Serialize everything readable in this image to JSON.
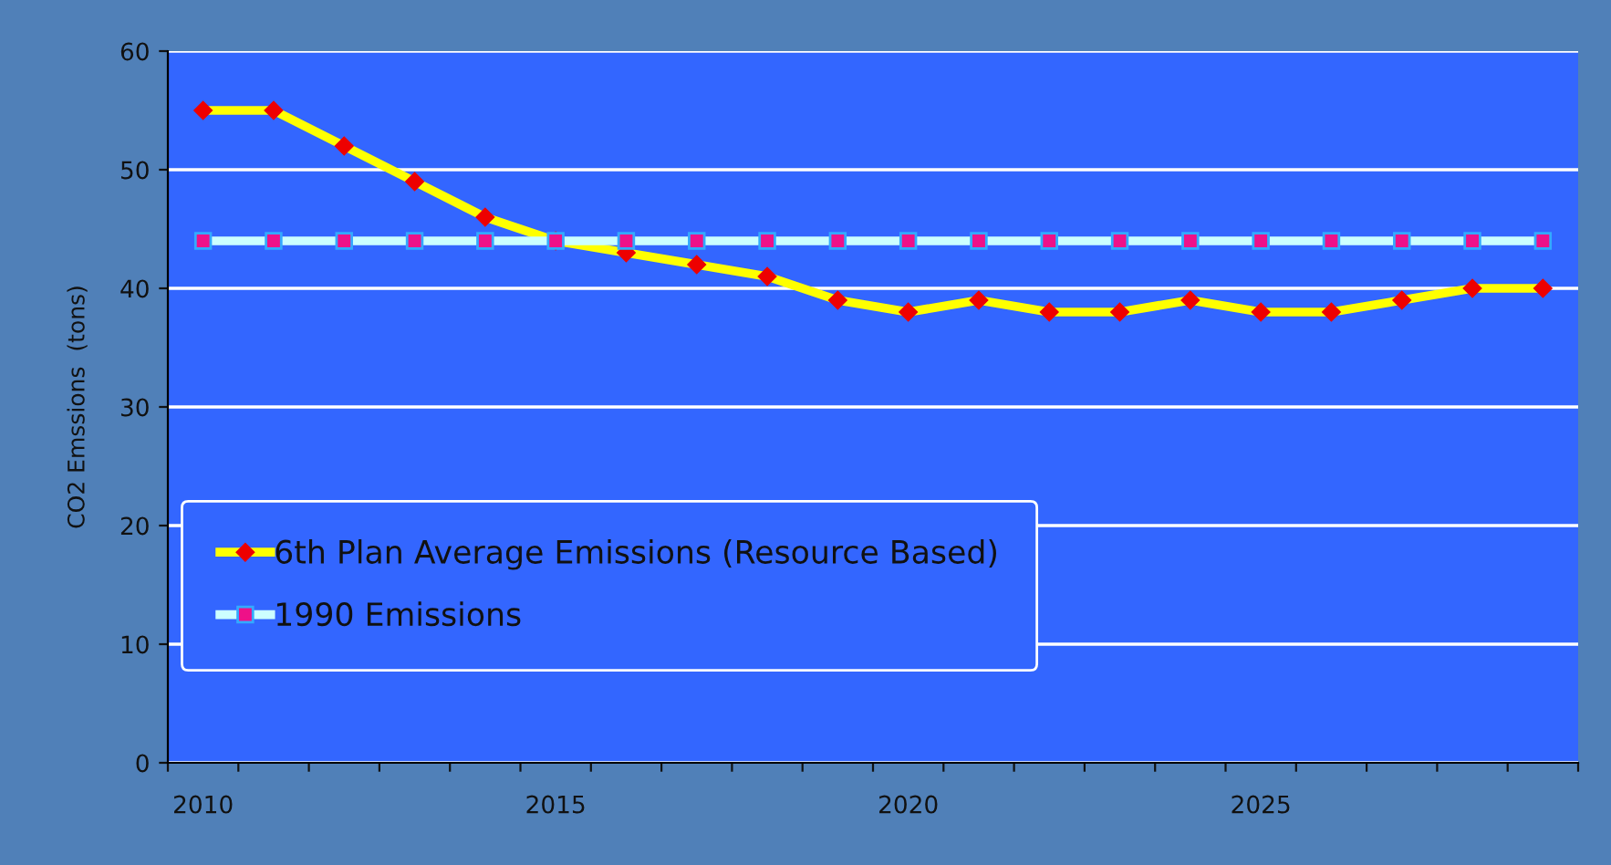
{
  "chart_data": {
    "type": "line",
    "ylabel": "CO2 Emssions  (tons)",
    "categories": [
      "2010",
      null,
      null,
      null,
      null,
      "2015",
      null,
      null,
      null,
      null,
      "2020",
      null,
      null,
      null,
      null,
      "2025",
      null,
      null,
      null,
      null
    ],
    "series": [
      {
        "name": "6th Plan Average Emissions (Resource Based)",
        "color": "#ffff00",
        "marker": "diamond",
        "values": [
          55,
          55,
          52,
          49,
          46,
          44,
          43,
          42,
          41,
          39,
          38,
          39,
          38,
          38,
          39,
          38,
          38,
          39,
          40,
          40
        ]
      },
      {
        "name": "1990 Emissions",
        "color": "#ccffff",
        "marker": "square",
        "values": [
          44,
          44,
          44,
          44,
          44,
          44,
          44,
          44,
          44,
          44,
          44,
          44,
          44,
          44,
          44,
          44,
          44,
          44,
          44,
          44
        ]
      }
    ],
    "ylim": [
      0,
      60
    ],
    "yticks": [
      0,
      10,
      20,
      30,
      40,
      50,
      60
    ],
    "grid": "y",
    "legend": "bottom left",
    "line_style": "solid"
  }
}
